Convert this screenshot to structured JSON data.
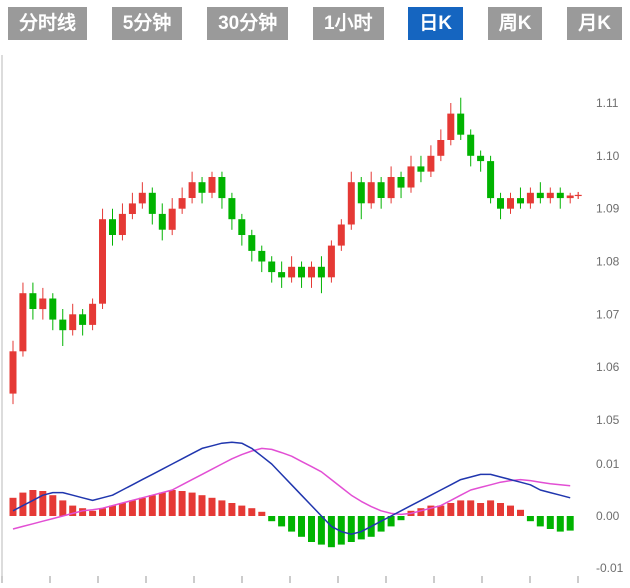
{
  "toolbar": {
    "tabs": [
      {
        "label": "分时线",
        "active": false
      },
      {
        "label": "5分钟",
        "active": false
      },
      {
        "label": "30分钟",
        "active": false
      },
      {
        "label": "1小时",
        "active": false
      },
      {
        "label": "日K",
        "active": true
      },
      {
        "label": "周K",
        "active": false
      },
      {
        "label": "月K",
        "active": false
      }
    ],
    "active_color": "#1565c0",
    "inactive_color": "#9a9a9a"
  },
  "chart_data": {
    "type": "candlestick",
    "panels": [
      "price-kline",
      "macd-indicator"
    ],
    "legend_position": "none",
    "grid": false,
    "colors": {
      "up": "#e53935",
      "down": "#00b300",
      "dif": "#2036ae",
      "dea": "#e24fd4",
      "axis_text": "#6e6e6e"
    },
    "price_axis": {
      "side": "right",
      "ticks": [
        {
          "label": "1.11",
          "value": 1.11
        },
        {
          "label": "1.10",
          "value": 1.1
        },
        {
          "label": "1.09",
          "value": 1.09
        },
        {
          "label": "1.08",
          "value": 1.08
        },
        {
          "label": "1.07",
          "value": 1.07
        },
        {
          "label": "1.06",
          "value": 1.06
        },
        {
          "label": "1.05",
          "value": 1.05
        }
      ],
      "min": 1.049,
      "max": 1.118
    },
    "macd_axis": {
      "side": "right",
      "ticks": [
        {
          "label": "0.01",
          "value": 0.01
        },
        {
          "label": "0.00",
          "value": 0.0
        },
        {
          "label": "-0.01",
          "value": -0.01
        }
      ],
      "min": -0.013,
      "max": 0.018
    },
    "candle_fields": [
      "open",
      "high",
      "low",
      "close"
    ],
    "candles": [
      [
        1.055,
        1.065,
        1.053,
        1.063
      ],
      [
        1.063,
        1.076,
        1.062,
        1.074
      ],
      [
        1.074,
        1.076,
        1.069,
        1.071
      ],
      [
        1.071,
        1.075,
        1.069,
        1.073
      ],
      [
        1.073,
        1.074,
        1.067,
        1.069
      ],
      [
        1.069,
        1.071,
        1.064,
        1.067
      ],
      [
        1.067,
        1.072,
        1.066,
        1.07
      ],
      [
        1.07,
        1.071,
        1.066,
        1.068
      ],
      [
        1.068,
        1.073,
        1.067,
        1.072
      ],
      [
        1.072,
        1.09,
        1.071,
        1.088
      ],
      [
        1.088,
        1.09,
        1.083,
        1.085
      ],
      [
        1.085,
        1.091,
        1.084,
        1.089
      ],
      [
        1.089,
        1.093,
        1.088,
        1.091
      ],
      [
        1.091,
        1.095,
        1.09,
        1.093
      ],
      [
        1.093,
        1.094,
        1.087,
        1.089
      ],
      [
        1.089,
        1.091,
        1.084,
        1.086
      ],
      [
        1.086,
        1.092,
        1.085,
        1.09
      ],
      [
        1.09,
        1.094,
        1.089,
        1.092
      ],
      [
        1.092,
        1.097,
        1.091,
        1.095
      ],
      [
        1.095,
        1.096,
        1.091,
        1.093
      ],
      [
        1.093,
        1.097,
        1.092,
        1.096
      ],
      [
        1.096,
        1.097,
        1.09,
        1.092
      ],
      [
        1.092,
        1.093,
        1.086,
        1.088
      ],
      [
        1.088,
        1.089,
        1.083,
        1.085
      ],
      [
        1.085,
        1.086,
        1.08,
        1.082
      ],
      [
        1.082,
        1.083,
        1.078,
        1.08
      ],
      [
        1.08,
        1.081,
        1.076,
        1.078
      ],
      [
        1.078,
        1.08,
        1.075,
        1.077
      ],
      [
        1.077,
        1.081,
        1.076,
        1.079
      ],
      [
        1.079,
        1.08,
        1.075,
        1.077
      ],
      [
        1.077,
        1.08,
        1.075,
        1.079
      ],
      [
        1.079,
        1.081,
        1.074,
        1.077
      ],
      [
        1.077,
        1.084,
        1.076,
        1.083
      ],
      [
        1.083,
        1.088,
        1.082,
        1.087
      ],
      [
        1.087,
        1.097,
        1.086,
        1.095
      ],
      [
        1.095,
        1.096,
        1.088,
        1.091
      ],
      [
        1.091,
        1.097,
        1.09,
        1.095
      ],
      [
        1.095,
        1.096,
        1.09,
        1.092
      ],
      [
        1.092,
        1.098,
        1.091,
        1.096
      ],
      [
        1.096,
        1.097,
        1.092,
        1.094
      ],
      [
        1.094,
        1.1,
        1.093,
        1.098
      ],
      [
        1.098,
        1.1,
        1.095,
        1.097
      ],
      [
        1.097,
        1.102,
        1.096,
        1.1
      ],
      [
        1.1,
        1.105,
        1.099,
        1.103
      ],
      [
        1.103,
        1.11,
        1.102,
        1.108
      ],
      [
        1.108,
        1.111,
        1.103,
        1.104
      ],
      [
        1.104,
        1.105,
        1.098,
        1.1
      ],
      [
        1.1,
        1.101,
        1.097,
        1.099
      ],
      [
        1.099,
        1.1,
        1.091,
        1.092
      ],
      [
        1.092,
        1.093,
        1.088,
        1.09
      ],
      [
        1.09,
        1.093,
        1.089,
        1.092
      ],
      [
        1.092,
        1.094,
        1.09,
        1.091
      ],
      [
        1.091,
        1.094,
        1.09,
        1.093
      ],
      [
        1.093,
        1.095,
        1.091,
        1.092
      ],
      [
        1.092,
        1.094,
        1.091,
        1.093
      ],
      [
        1.093,
        1.094,
        1.09,
        1.092
      ],
      [
        1.092,
        1.093,
        1.091,
        1.0925
      ]
    ],
    "macd": {
      "histogram": [
        0.0035,
        0.0045,
        0.005,
        0.0048,
        0.004,
        0.003,
        0.002,
        0.0015,
        0.001,
        0.0015,
        0.002,
        0.0025,
        0.003,
        0.0035,
        0.004,
        0.0045,
        0.005,
        0.0048,
        0.0045,
        0.004,
        0.0035,
        0.003,
        0.0025,
        0.002,
        0.0015,
        0.0008,
        -0.001,
        -0.002,
        -0.003,
        -0.004,
        -0.005,
        -0.0055,
        -0.006,
        -0.0055,
        -0.005,
        -0.0045,
        -0.004,
        -0.003,
        -0.002,
        -0.0008,
        0.001,
        0.0015,
        0.002,
        0.002,
        0.0025,
        0.003,
        0.003,
        0.0025,
        0.003,
        0.0025,
        0.002,
        0.0012,
        -0.001,
        -0.002,
        -0.0025,
        -0.003,
        -0.0028
      ],
      "dif": [
        0.001,
        0.002,
        0.003,
        0.004,
        0.0045,
        0.0045,
        0.004,
        0.0035,
        0.003,
        0.0035,
        0.004,
        0.005,
        0.006,
        0.007,
        0.008,
        0.009,
        0.01,
        0.011,
        0.012,
        0.013,
        0.0135,
        0.014,
        0.0142,
        0.014,
        0.013,
        0.0115,
        0.01,
        0.008,
        0.006,
        0.004,
        0.002,
        0.0,
        -0.002,
        -0.003,
        -0.0035,
        -0.003,
        -0.002,
        -0.001,
        0.0,
        0.001,
        0.002,
        0.003,
        0.004,
        0.005,
        0.006,
        0.007,
        0.0075,
        0.008,
        0.008,
        0.0075,
        0.007,
        0.0065,
        0.006,
        0.005,
        0.0045,
        0.004,
        0.0035
      ],
      "dea": [
        -0.0025,
        -0.002,
        -0.0015,
        -0.001,
        -0.0005,
        0.0,
        0.0005,
        0.001,
        0.0012,
        0.0015,
        0.002,
        0.0025,
        0.003,
        0.0035,
        0.004,
        0.0045,
        0.005,
        0.006,
        0.007,
        0.008,
        0.009,
        0.01,
        0.011,
        0.0118,
        0.0125,
        0.013,
        0.0128,
        0.0122,
        0.0115,
        0.0105,
        0.0095,
        0.0085,
        0.007,
        0.0055,
        0.004,
        0.0028,
        0.0018,
        0.001,
        0.0005,
        0.0003,
        0.0005,
        0.001,
        0.0015,
        0.002,
        0.003,
        0.004,
        0.005,
        0.0055,
        0.006,
        0.0065,
        0.0068,
        0.007,
        0.0068,
        0.0065,
        0.0062,
        0.006,
        0.0058
      ]
    }
  }
}
